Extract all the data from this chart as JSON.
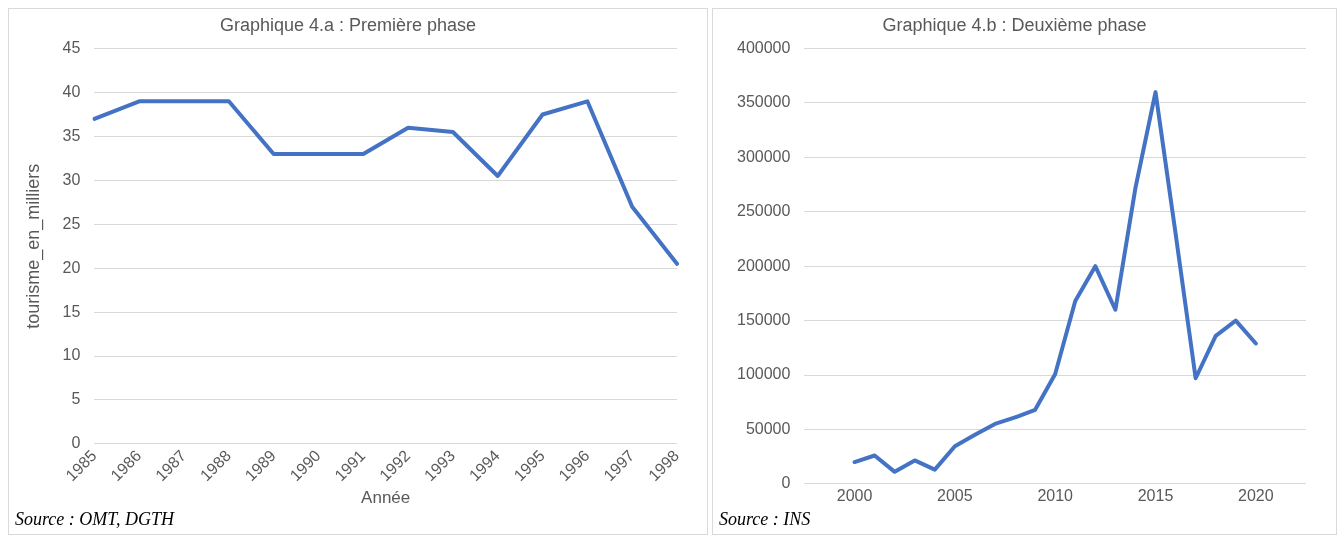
{
  "chart_data": [
    {
      "type": "line",
      "title": "Graphique 4.a : Première phase",
      "xlabel": "Année",
      "ylabel": "tourisme_en_milliers",
      "categories": [
        "1985",
        "1986",
        "1987",
        "1988",
        "1989",
        "1990",
        "1991",
        "1992",
        "1993",
        "1994",
        "1995",
        "1996",
        "1997",
        "1998"
      ],
      "series": [
        {
          "color": "#4472c4",
          "values": [
            37,
            39,
            39,
            39,
            33,
            33,
            33,
            36,
            35.5,
            30.5,
            37.5,
            39,
            27,
            20.5
          ]
        }
      ],
      "ylim": [
        0,
        45
      ],
      "yticks": [
        0,
        5,
        10,
        15,
        20,
        25,
        30,
        35,
        40,
        45
      ],
      "grid": "y",
      "marker": "none",
      "annotations": [
        "Source : OMT, DGTH"
      ]
    },
    {
      "type": "line",
      "title": "Graphique 4.b : Deuxième phase",
      "x": [
        2000,
        2001,
        2002,
        2003,
        2004,
        2005,
        2006,
        2007,
        2008,
        2009,
        2010,
        2011,
        2012,
        2013,
        2014,
        2015,
        2016,
        2017,
        2018,
        2019,
        2020
      ],
      "series": [
        {
          "color": "#4472c4",
          "values": [
            20000,
            26000,
            11000,
            21500,
            13000,
            34500,
            45000,
            55000,
            61000,
            68000,
            101000,
            168000,
            200000,
            160000,
            272000,
            360000,
            230000,
            97000,
            136000,
            150000,
            129000
          ]
        }
      ],
      "xlim": [
        1997.5,
        2022.5
      ],
      "xticks": [
        2000,
        2005,
        2010,
        2015,
        2020
      ],
      "ylim": [
        0,
        400000
      ],
      "yticks": [
        0,
        50000,
        100000,
        150000,
        200000,
        250000,
        300000,
        350000,
        400000
      ],
      "grid": "y",
      "marker": "none",
      "annotations": [
        "Source : INS"
      ]
    }
  ]
}
